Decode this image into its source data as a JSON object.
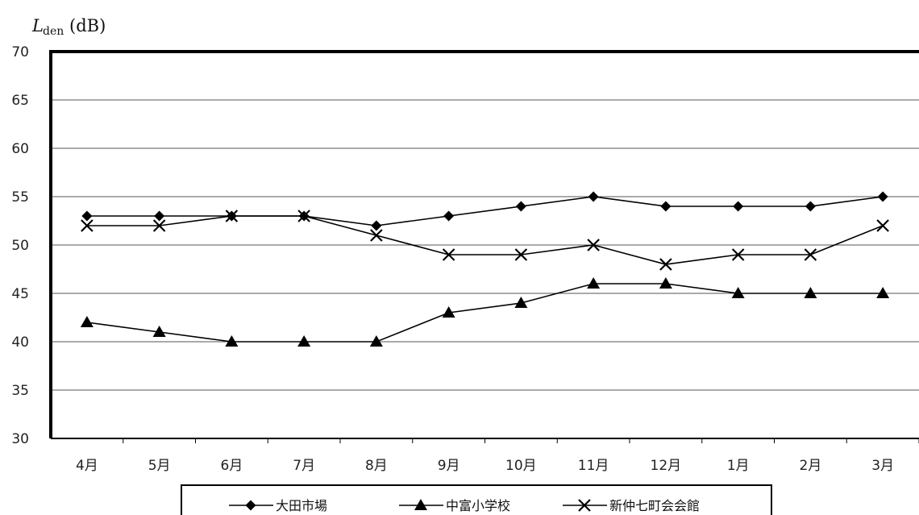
{
  "chart_data": {
    "type": "line",
    "ylabel": {
      "main": "L",
      "sub": "den",
      "unit": "(dB)"
    },
    "categories": [
      "4月",
      "5月",
      "6月",
      "7月",
      "8月",
      "9月",
      "10月",
      "11月",
      "12月",
      "1月",
      "2月",
      "3月"
    ],
    "ylim": [
      30,
      70
    ],
    "yticks": [
      "30",
      "35",
      "40",
      "45",
      "50",
      "55",
      "60",
      "65",
      "70"
    ],
    "grid": true,
    "legend_position": "bottom",
    "series": [
      {
        "name": "大田市場",
        "marker": "diamond",
        "values": [
          53,
          53,
          53,
          53,
          52,
          53,
          54,
          55,
          54,
          54,
          54,
          55
        ]
      },
      {
        "name": "中富小学校",
        "marker": "triangle",
        "values": [
          42,
          41,
          40,
          40,
          40,
          43,
          44,
          46,
          46,
          45,
          45,
          45
        ]
      },
      {
        "name": "新仲七町会会館",
        "marker": "x",
        "values": [
          52,
          52,
          53,
          53,
          51,
          49,
          49,
          50,
          48,
          49,
          49,
          52
        ]
      }
    ]
  }
}
